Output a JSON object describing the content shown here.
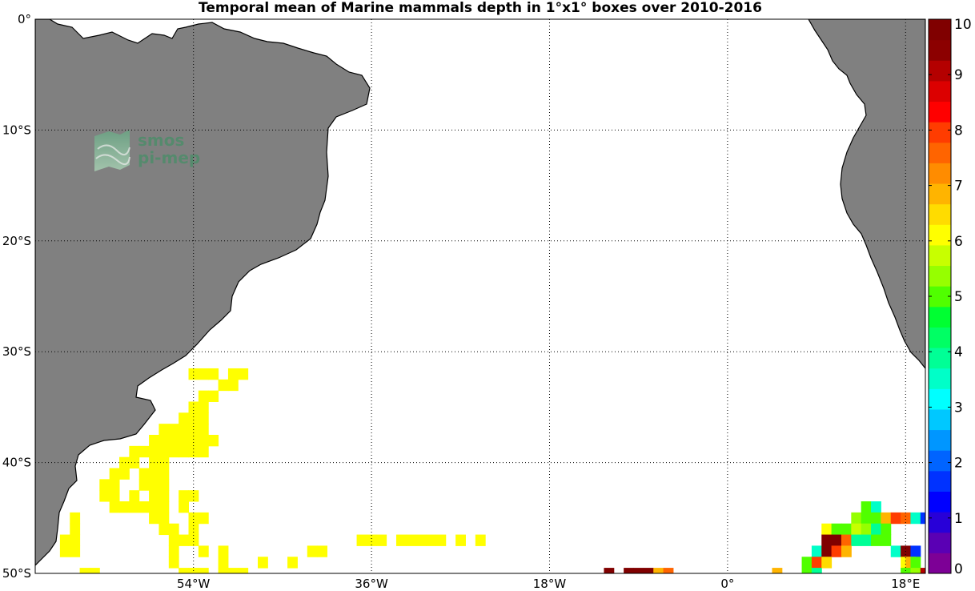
{
  "title": "Temporal mean of Marine mammals depth in 1°x1° boxes over 2010-2016",
  "watermark": {
    "line1": "smos",
    "line2": "pi-mep",
    "color": "#4e8c6a"
  },
  "map": {
    "lon_range": [
      -70,
      20
    ],
    "lat_range": [
      -50,
      0
    ],
    "land_color": "#808080",
    "grid": "dotted",
    "lat_ticks": [
      {
        "value": 0,
        "label": "0°"
      },
      {
        "value": -10,
        "label": "10°S"
      },
      {
        "value": -20,
        "label": "20°S"
      },
      {
        "value": -30,
        "label": "30°S"
      },
      {
        "value": -40,
        "label": "40°S"
      },
      {
        "value": -50,
        "label": "50°S"
      }
    ],
    "lon_ticks": [
      {
        "value": -54,
        "label": "54°W"
      },
      {
        "value": -36,
        "label": "36°W"
      },
      {
        "value": -18,
        "label": "18°W"
      },
      {
        "value": 0,
        "label": "0°"
      },
      {
        "value": 18,
        "label": "18°E"
      }
    ]
  },
  "colorbar": {
    "min": 0,
    "max": 10,
    "tick_labels": [
      "0",
      "1",
      "2",
      "3",
      "4",
      "5",
      "6",
      "7",
      "8",
      "9",
      "10"
    ],
    "colors": [
      "#7d0096",
      "#5a00b4",
      "#2800d8",
      "#0000ff",
      "#0032ff",
      "#0064ff",
      "#0096ff",
      "#00c8ff",
      "#00ffff",
      "#00ffc8",
      "#00ff96",
      "#00ff64",
      "#00ff32",
      "#50ff00",
      "#96ff00",
      "#c8ff00",
      "#ffff00",
      "#ffdc00",
      "#ffb400",
      "#ff8c00",
      "#ff6400",
      "#ff3c00",
      "#ff0000",
      "#dc0000",
      "#b40000",
      "#8c0000",
      "#800000"
    ]
  },
  "chart_data": {
    "type": "heatmap",
    "title": "Temporal mean of Marine mammals depth in 1°x1° boxes over 2010-2016",
    "x_range": [
      -70,
      20
    ],
    "y_range": [
      -50,
      0
    ],
    "value_range": [
      0,
      10
    ],
    "cell_size_deg": 1,
    "cells": [
      {
        "lon": -54,
        "lat": -32,
        "value": 6
      },
      {
        "lon": -53,
        "lat": -32,
        "value": 6
      },
      {
        "lon": -52,
        "lat": -32,
        "value": 6
      },
      {
        "lon": -50,
        "lat": -32,
        "value": 6
      },
      {
        "lon": -49,
        "lat": -32,
        "value": 6
      },
      {
        "lon": -51,
        "lat": -33,
        "value": 6
      },
      {
        "lon": -50,
        "lat": -33,
        "value": 6
      },
      {
        "lon": -53,
        "lat": -34,
        "value": 6
      },
      {
        "lon": -52,
        "lat": -34,
        "value": 6
      },
      {
        "lon": -54,
        "lat": -35,
        "value": 6
      },
      {
        "lon": -53,
        "lat": -35,
        "value": 6
      },
      {
        "lon": -55,
        "lat": -36,
        "value": 6
      },
      {
        "lon": -54,
        "lat": -36,
        "value": 6
      },
      {
        "lon": -53,
        "lat": -36,
        "value": 6
      },
      {
        "lon": -57,
        "lat": -37,
        "value": 6
      },
      {
        "lon": -56,
        "lat": -37,
        "value": 6
      },
      {
        "lon": -55,
        "lat": -37,
        "value": 6
      },
      {
        "lon": -54,
        "lat": -37,
        "value": 6
      },
      {
        "lon": -53,
        "lat": -37,
        "value": 6
      },
      {
        "lon": -58,
        "lat": -38,
        "value": 6
      },
      {
        "lon": -57,
        "lat": -38,
        "value": 6
      },
      {
        "lon": -56,
        "lat": -38,
        "value": 6
      },
      {
        "lon": -55,
        "lat": -38,
        "value": 6
      },
      {
        "lon": -54,
        "lat": -38,
        "value": 6
      },
      {
        "lon": -53,
        "lat": -38,
        "value": 6
      },
      {
        "lon": -52,
        "lat": -38,
        "value": 6
      },
      {
        "lon": -60,
        "lat": -39,
        "value": 6
      },
      {
        "lon": -59,
        "lat": -39,
        "value": 6
      },
      {
        "lon": -58,
        "lat": -39,
        "value": 6
      },
      {
        "lon": -57,
        "lat": -39,
        "value": 6
      },
      {
        "lon": -56,
        "lat": -39,
        "value": 6
      },
      {
        "lon": -55,
        "lat": -39,
        "value": 6
      },
      {
        "lon": -54,
        "lat": -39,
        "value": 6
      },
      {
        "lon": -53,
        "lat": -39,
        "value": 6
      },
      {
        "lon": -61,
        "lat": -40,
        "value": 6
      },
      {
        "lon": -60,
        "lat": -40,
        "value": 6
      },
      {
        "lon": -58,
        "lat": -40,
        "value": 6
      },
      {
        "lon": -57,
        "lat": -40,
        "value": 6
      },
      {
        "lon": -62,
        "lat": -41,
        "value": 6
      },
      {
        "lon": -61,
        "lat": -41,
        "value": 6
      },
      {
        "lon": -59,
        "lat": -41,
        "value": 6
      },
      {
        "lon": -58,
        "lat": -41,
        "value": 6
      },
      {
        "lon": -57,
        "lat": -41,
        "value": 6
      },
      {
        "lon": -63,
        "lat": -42,
        "value": 6
      },
      {
        "lon": -62,
        "lat": -42,
        "value": 6
      },
      {
        "lon": -59,
        "lat": -42,
        "value": 6
      },
      {
        "lon": -58,
        "lat": -42,
        "value": 6
      },
      {
        "lon": -57,
        "lat": -42,
        "value": 6
      },
      {
        "lon": -63,
        "lat": -43,
        "value": 6
      },
      {
        "lon": -62,
        "lat": -43,
        "value": 6
      },
      {
        "lon": -60,
        "lat": -43,
        "value": 6
      },
      {
        "lon": -58,
        "lat": -43,
        "value": 6
      },
      {
        "lon": -57,
        "lat": -43,
        "value": 6
      },
      {
        "lon": -55,
        "lat": -43,
        "value": 6
      },
      {
        "lon": -54,
        "lat": -43,
        "value": 6
      },
      {
        "lon": -62,
        "lat": -44,
        "value": 6
      },
      {
        "lon": -61,
        "lat": -44,
        "value": 6
      },
      {
        "lon": -60,
        "lat": -44,
        "value": 6
      },
      {
        "lon": -59,
        "lat": -44,
        "value": 6
      },
      {
        "lon": -58,
        "lat": -44,
        "value": 6
      },
      {
        "lon": -57,
        "lat": -44,
        "value": 6
      },
      {
        "lon": -55,
        "lat": -44,
        "value": 6
      },
      {
        "lon": -66,
        "lat": -45,
        "value": 6
      },
      {
        "lon": -58,
        "lat": -45,
        "value": 6
      },
      {
        "lon": -57,
        "lat": -45,
        "value": 6
      },
      {
        "lon": -54,
        "lat": -45,
        "value": 6
      },
      {
        "lon": -53,
        "lat": -45,
        "value": 6
      },
      {
        "lon": -66,
        "lat": -46,
        "value": 6
      },
      {
        "lon": -57,
        "lat": -46,
        "value": 6
      },
      {
        "lon": -56,
        "lat": -46,
        "value": 6
      },
      {
        "lon": -54,
        "lat": -46,
        "value": 6
      },
      {
        "lon": -67,
        "lat": -47,
        "value": 6
      },
      {
        "lon": -66,
        "lat": -47,
        "value": 6
      },
      {
        "lon": -56,
        "lat": -47,
        "value": 6
      },
      {
        "lon": -55,
        "lat": -47,
        "value": 6
      },
      {
        "lon": -54,
        "lat": -47,
        "value": 6
      },
      {
        "lon": -37,
        "lat": -47,
        "value": 6
      },
      {
        "lon": -36,
        "lat": -47,
        "value": 6
      },
      {
        "lon": -35,
        "lat": -47,
        "value": 6
      },
      {
        "lon": -33,
        "lat": -47,
        "value": 6
      },
      {
        "lon": -32,
        "lat": -47,
        "value": 6
      },
      {
        "lon": -31,
        "lat": -47,
        "value": 6
      },
      {
        "lon": -30,
        "lat": -47,
        "value": 6
      },
      {
        "lon": -29,
        "lat": -47,
        "value": 6
      },
      {
        "lon": -27,
        "lat": -47,
        "value": 6
      },
      {
        "lon": -25,
        "lat": -47,
        "value": 6
      },
      {
        "lon": -67,
        "lat": -48,
        "value": 6
      },
      {
        "lon": -66,
        "lat": -48,
        "value": 6
      },
      {
        "lon": -56,
        "lat": -48,
        "value": 6
      },
      {
        "lon": -53,
        "lat": -48,
        "value": 6
      },
      {
        "lon": -51,
        "lat": -48,
        "value": 6
      },
      {
        "lon": -42,
        "lat": -48,
        "value": 6
      },
      {
        "lon": -41,
        "lat": -48,
        "value": 6
      },
      {
        "lon": -56,
        "lat": -49,
        "value": 6
      },
      {
        "lon": -51,
        "lat": -49,
        "value": 6
      },
      {
        "lon": -47,
        "lat": -49,
        "value": 6
      },
      {
        "lon": -44,
        "lat": -49,
        "value": 6
      },
      {
        "lon": -65,
        "lat": -50,
        "value": 6
      },
      {
        "lon": -64,
        "lat": -50,
        "value": 6
      },
      {
        "lon": -55,
        "lat": -50,
        "value": 6
      },
      {
        "lon": -54,
        "lat": -50,
        "value": 6
      },
      {
        "lon": -53,
        "lat": -50,
        "value": 6
      },
      {
        "lon": -51,
        "lat": -50,
        "value": 6
      },
      {
        "lon": -50,
        "lat": -50,
        "value": 6
      },
      {
        "lon": -49,
        "lat": -50,
        "value": 6
      },
      {
        "lon": -12,
        "lat": -50,
        "value": 10
      },
      {
        "lon": -10,
        "lat": -50,
        "value": 10
      },
      {
        "lon": -9,
        "lat": -50,
        "value": 10
      },
      {
        "lon": -8,
        "lat": -50,
        "value": 10
      },
      {
        "lon": -7,
        "lat": -50,
        "value": 7
      },
      {
        "lon": -6,
        "lat": -50,
        "value": 7.5
      },
      {
        "lon": 14,
        "lat": -44,
        "value": 5
      },
      {
        "lon": 15,
        "lat": -44,
        "value": 3.5
      },
      {
        "lon": 13,
        "lat": -45,
        "value": 5.5
      },
      {
        "lon": 14,
        "lat": -45,
        "value": 5
      },
      {
        "lon": 15,
        "lat": -45,
        "value": 5
      },
      {
        "lon": 16,
        "lat": -45,
        "value": 7
      },
      {
        "lon": 17,
        "lat": -45,
        "value": 8
      },
      {
        "lon": 18,
        "lat": -45,
        "value": 7.5
      },
      {
        "lon": 19,
        "lat": -45,
        "value": 3.5
      },
      {
        "lon": 20,
        "lat": -45,
        "value": 1.5
      },
      {
        "lon": 10,
        "lat": -46,
        "value": 6
      },
      {
        "lon": 11,
        "lat": -46,
        "value": 5
      },
      {
        "lon": 12,
        "lat": -46,
        "value": 5
      },
      {
        "lon": 13,
        "lat": -46,
        "value": 5.8
      },
      {
        "lon": 14,
        "lat": -46,
        "value": 5.3
      },
      {
        "lon": 15,
        "lat": -46,
        "value": 3.8
      },
      {
        "lon": 16,
        "lat": -46,
        "value": 5
      },
      {
        "lon": 10,
        "lat": -47,
        "value": 10
      },
      {
        "lon": 11,
        "lat": -47,
        "value": 10
      },
      {
        "lon": 12,
        "lat": -47,
        "value": 7.5
      },
      {
        "lon": 13,
        "lat": -47,
        "value": 3.8
      },
      {
        "lon": 14,
        "lat": -47,
        "value": 3.8
      },
      {
        "lon": 15,
        "lat": -47,
        "value": 5
      },
      {
        "lon": 16,
        "lat": -47,
        "value": 5
      },
      {
        "lon": 9,
        "lat": -48,
        "value": 3.5
      },
      {
        "lon": 10,
        "lat": -48,
        "value": 10
      },
      {
        "lon": 11,
        "lat": -48,
        "value": 8
      },
      {
        "lon": 12,
        "lat": -48,
        "value": 6.8
      },
      {
        "lon": 17,
        "lat": -48,
        "value": 3.5
      },
      {
        "lon": 18,
        "lat": -48,
        "value": 10
      },
      {
        "lon": 19,
        "lat": -48,
        "value": 1.5
      },
      {
        "lon": 8,
        "lat": -49,
        "value": 5
      },
      {
        "lon": 9,
        "lat": -49,
        "value": 8
      },
      {
        "lon": 10,
        "lat": -49,
        "value": 6.5
      },
      {
        "lon": 18,
        "lat": -49,
        "value": 6
      },
      {
        "lon": 18.5,
        "lat": -49,
        "value": 7
      },
      {
        "lon": 19,
        "lat": -49,
        "value": 5
      },
      {
        "lon": 8,
        "lat": -50,
        "value": 5
      },
      {
        "lon": 9,
        "lat": -50,
        "value": 3.8
      },
      {
        "lon": 5,
        "lat": -50,
        "value": 7
      },
      {
        "lon": 18,
        "lat": -50,
        "value": 5
      },
      {
        "lon": 19,
        "lat": -50,
        "value": 5.2
      },
      {
        "lon": 20,
        "lat": -50,
        "value": 9.2
      }
    ]
  }
}
